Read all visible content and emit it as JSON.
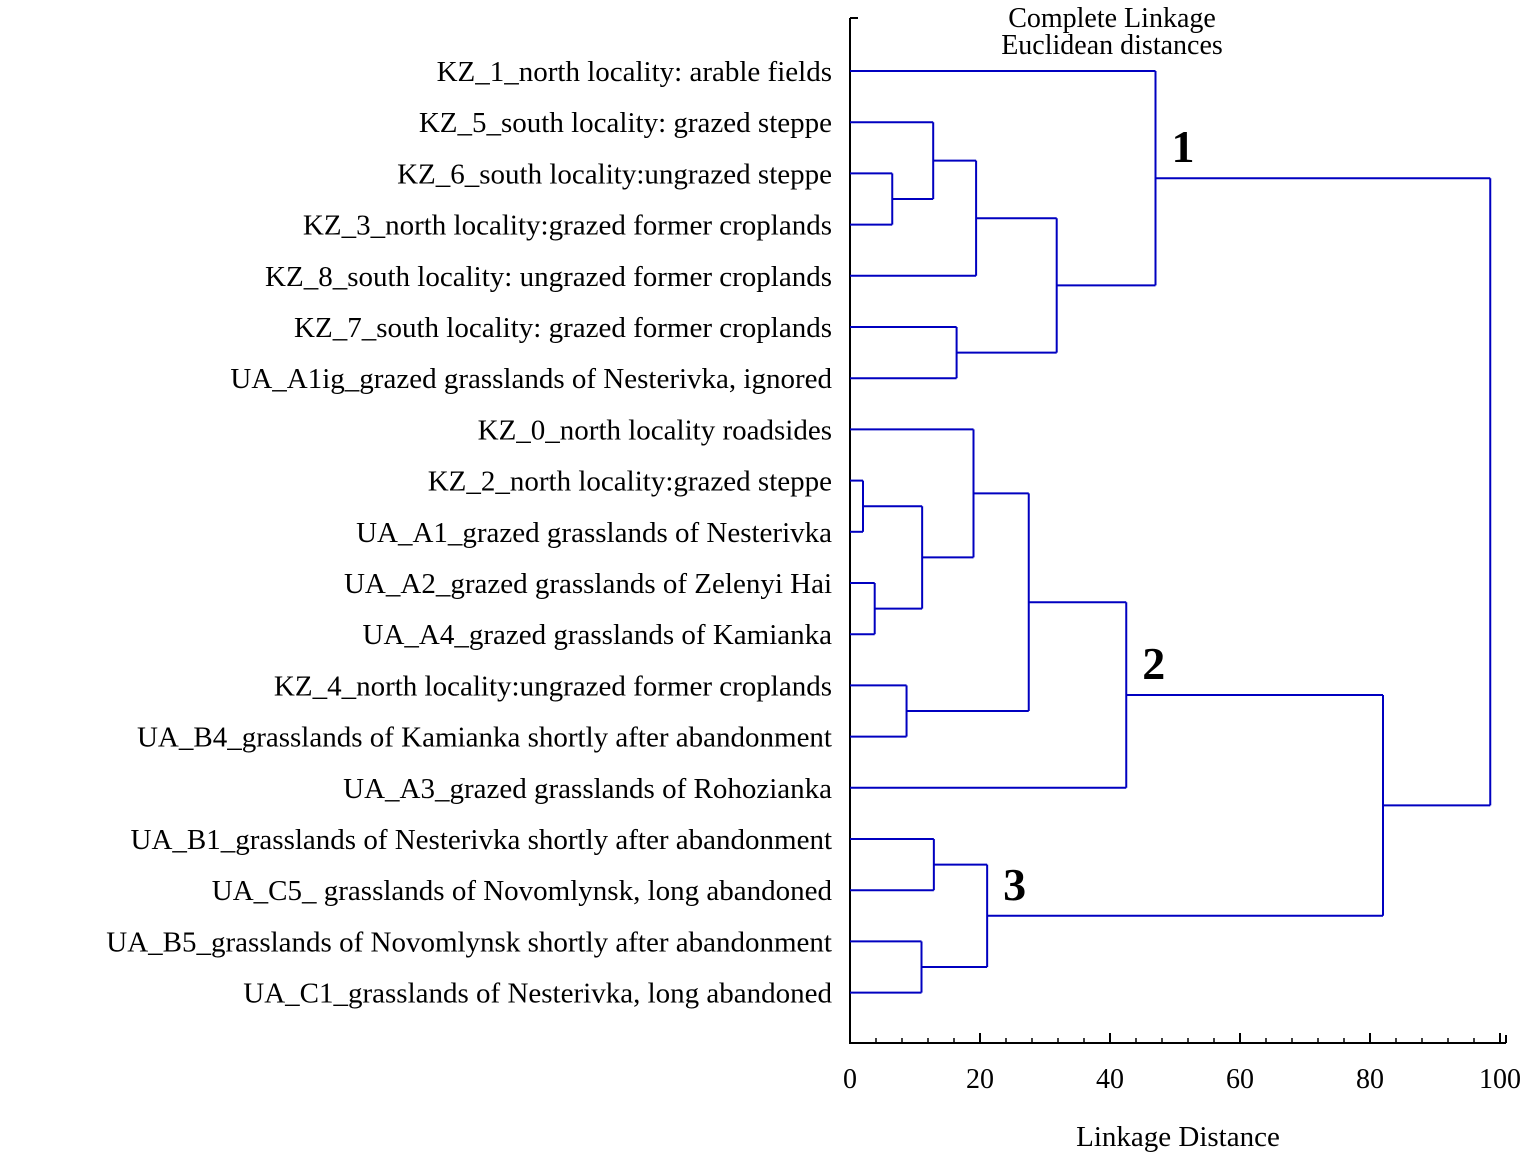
{
  "chart_data": {
    "type": "dendrogram",
    "title": "Complete Linkage",
    "subtitle": "Euclidean distances",
    "xlabel": "Linkage Distance",
    "xlim": [
      0,
      100
    ],
    "x_ticks": [
      0,
      20,
      40,
      60,
      80,
      100
    ],
    "x_tick_labels": [
      "0",
      "20",
      "40",
      "60",
      "80",
      "100"
    ],
    "colors": {
      "tree": "#0000c0",
      "axis": "#000000",
      "text": "#000000"
    },
    "leaves": [
      "KZ_1_north locality: arable fields",
      "KZ_5_south locality: grazed steppe",
      "KZ_6_south locality:ungrazed steppe",
      "KZ_3_north locality:grazed former croplands",
      "KZ_8_south locality: ungrazed former croplands",
      "KZ_7_south locality: grazed former croplands",
      "UA_A1ig_grazed grasslands of Nesterivka, ignored",
      "KZ_0_north locality roadsides",
      "KZ_2_north locality:grazed steppe",
      "UA_A1_grazed grasslands of Nesterivka",
      "UA_A2_grazed grasslands of Zelenyi Hai",
      "UA_A4_grazed grasslands of Kamianka",
      "KZ_4_north locality:ungrazed former croplands",
      "UA_B4_grasslands of Kamianka shortly after abandonment",
      "UA_A3_grazed grasslands of Rohozianka",
      "UA_B1_grasslands of Nesterivka shortly after abandonment",
      "UA_C5_ grasslands of Novomlynsk, long abandoned",
      "UA_B5_grasslands of Novomlynsk shortly after abandonment",
      "UA_C1_grasslands of Nesterivka, long abandoned"
    ],
    "merges": [
      {
        "id": "m1",
        "left": 2,
        "right": 3,
        "distance": 6.5
      },
      {
        "id": "m2",
        "left": 1,
        "right": "m1",
        "distance": 12.8
      },
      {
        "id": "m3",
        "left": "m2",
        "right": 4,
        "distance": 19.4
      },
      {
        "id": "m4",
        "left": 5,
        "right": 6,
        "distance": 16.4
      },
      {
        "id": "m5",
        "left": "m3",
        "right": "m4",
        "distance": 31.8
      },
      {
        "id": "m6",
        "left": 0,
        "right": "m5",
        "distance": 47.0
      },
      {
        "id": "m7",
        "left": 8,
        "right": 9,
        "distance": 2.0
      },
      {
        "id": "m8",
        "left": 10,
        "right": 11,
        "distance": 3.8
      },
      {
        "id": "m9",
        "left": "m7",
        "right": "m8",
        "distance": 11.1
      },
      {
        "id": "m10",
        "left": 7,
        "right": "m9",
        "distance": 19.0
      },
      {
        "id": "m11",
        "left": 12,
        "right": 13,
        "distance": 8.7
      },
      {
        "id": "m12",
        "left": "m10",
        "right": "m11",
        "distance": 27.5
      },
      {
        "id": "m13",
        "left": "m12",
        "right": 14,
        "distance": 42.5
      },
      {
        "id": "m14",
        "left": 15,
        "right": 16,
        "distance": 12.9
      },
      {
        "id": "m15",
        "left": 17,
        "right": 18,
        "distance": 11.0
      },
      {
        "id": "m16",
        "left": "m14",
        "right": "m15",
        "distance": 21.1
      },
      {
        "id": "m17",
        "left": "m13",
        "right": "m16",
        "distance": 82.0
      },
      {
        "id": "m18",
        "left": "m6",
        "right": "m17",
        "distance": 98.5
      }
    ],
    "cluster_labels": [
      {
        "text": "1",
        "node": "m6"
      },
      {
        "text": "2",
        "node": "m13"
      },
      {
        "text": "3",
        "node": "m16"
      }
    ]
  }
}
